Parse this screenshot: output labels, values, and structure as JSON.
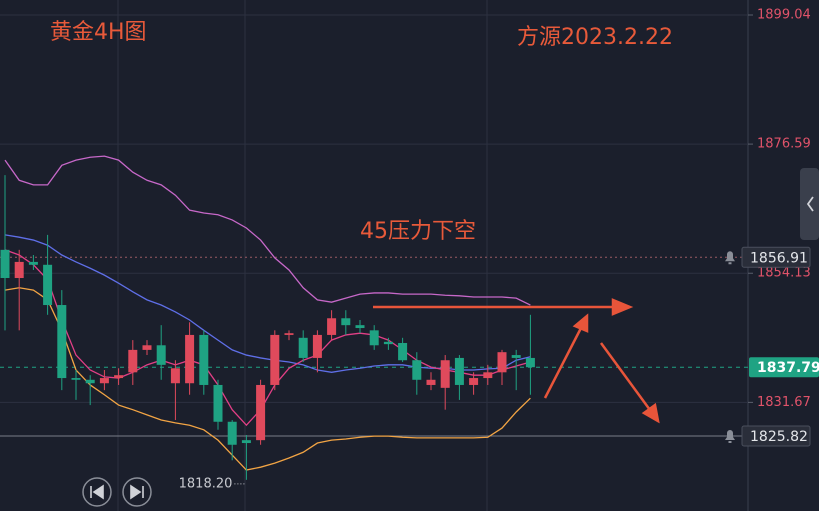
{
  "chart_data": {
    "type": "candlestick",
    "title": "黄金4H图",
    "subtitle": "方源2023.2.22",
    "annotation": "45压力下空",
    "categories": [
      null,
      null,
      null,
      null,
      null,
      null,
      null,
      null,
      null,
      null,
      null,
      null,
      null,
      null,
      null,
      null,
      null,
      null,
      null,
      null,
      null,
      null,
      null,
      null,
      null,
      null,
      null,
      null,
      null,
      null,
      null,
      null,
      null,
      null,
      null,
      null,
      null,
      null
    ],
    "open": [
      1858.2,
      1853.3,
      1856.1,
      1855.6,
      1848.6,
      1835.9,
      1835.6,
      1835.0,
      1835.9,
      1836.9,
      1840.8,
      1841.6,
      1835.0,
      1835.0,
      1843.4,
      1834.7,
      1828.3,
      1825.1,
      1825.1,
      1834.7,
      1843.4,
      1842.9,
      1839.4,
      1843.4,
      1846.3,
      1845.1,
      1844.2,
      1842.2,
      1842.0,
      1839.0,
      1834.7,
      1834.2,
      1839.4,
      1834.7,
      1835.9,
      1836.9,
      1839.9,
      1839.4
    ],
    "high": [
      1871.2,
      1858.2,
      1857.3,
      1860.8,
      1851.2,
      1837.3,
      1836.4,
      1837.3,
      1837.6,
      1842.5,
      1842.5,
      1845.1,
      1839.0,
      1845.6,
      1844.2,
      1835.6,
      1828.6,
      1826.0,
      1835.6,
      1844.2,
      1844.2,
      1844.2,
      1844.2,
      1847.7,
      1847.7,
      1846.0,
      1845.1,
      1842.9,
      1842.9,
      1840.4,
      1836.9,
      1839.9,
      1839.9,
      1836.9,
      1838.2,
      1840.8,
      1840.8,
      1846.9
    ],
    "low": [
      1844.2,
      1844.2,
      1854.7,
      1846.9,
      1833.8,
      1832.1,
      1831.2,
      1833.8,
      1834.7,
      1834.7,
      1839.9,
      1835.6,
      1828.6,
      1833.0,
      1833.0,
      1826.9,
      1821.6,
      1818.2,
      1824.3,
      1833.8,
      1842.5,
      1838.7,
      1836.9,
      1842.5,
      1843.4,
      1843.7,
      1840.8,
      1840.8,
      1838.7,
      1833.0,
      1833.8,
      1830.4,
      1832.1,
      1833.0,
      1834.7,
      1834.7,
      1833.8,
      1833.0
    ],
    "close": [
      1853.3,
      1856.1,
      1855.6,
      1848.6,
      1835.9,
      1835.6,
      1835.0,
      1835.9,
      1836.4,
      1840.8,
      1841.6,
      1838.2,
      1837.6,
      1843.4,
      1834.7,
      1828.3,
      1824.3,
      1824.6,
      1834.7,
      1843.4,
      1843.7,
      1839.4,
      1843.4,
      1846.3,
      1845.1,
      1844.6,
      1841.6,
      1841.8,
      1839.0,
      1835.6,
      1835.6,
      1839.0,
      1834.7,
      1835.9,
      1836.9,
      1840.4,
      1839.4,
      1837.79
    ],
    "up_color": "#e04a5c",
    "down_color": "#1fa383",
    "overlays": [
      {
        "color": "#c768c9",
        "values": [
          1873.8,
          1870.3,
          1869.5,
          1869.5,
          1872.9,
          1873.8,
          1874.3,
          1874.5,
          1873.8,
          1871.7,
          1870.3,
          1869.5,
          1867.7,
          1865.1,
          1864.6,
          1864.3,
          1863.4,
          1862.0,
          1859.9,
          1856.8,
          1854.7,
          1851.6,
          1849.5,
          1849.1,
          1849.8,
          1850.5,
          1850.7,
          1850.7,
          1850.5,
          1850.5,
          1850.5,
          1850.3,
          1850.2,
          1850.0,
          1850.0,
          1850.0,
          1849.8,
          1848.6
        ]
      },
      {
        "color": "#5f6fe8",
        "values": [
          1860.8,
          1860.4,
          1859.9,
          1859.0,
          1857.3,
          1856.1,
          1855.0,
          1853.8,
          1852.4,
          1850.9,
          1849.5,
          1848.6,
          1847.4,
          1846.0,
          1844.2,
          1842.5,
          1840.8,
          1839.9,
          1839.4,
          1839.0,
          1838.7,
          1838.2,
          1837.3,
          1836.9,
          1837.3,
          1837.6,
          1838.0,
          1838.2,
          1838.2,
          1837.8,
          1837.6,
          1837.6,
          1837.3,
          1837.3,
          1837.5,
          1837.6,
          1839.0,
          1839.6
        ]
      },
      {
        "color": "#f2a444",
        "values": [
          1851.2,
          1851.6,
          1851.2,
          1849.5,
          1844.2,
          1837.3,
          1834.7,
          1833.0,
          1831.2,
          1830.4,
          1829.5,
          1828.6,
          1828.1,
          1827.7,
          1826.9,
          1825.1,
          1822.5,
          1819.9,
          1820.4,
          1821.1,
          1822.0,
          1823.0,
          1824.6,
          1825.1,
          1825.3,
          1825.6,
          1825.8,
          1825.8,
          1825.6,
          1825.5,
          1825.5,
          1825.5,
          1825.5,
          1825.5,
          1825.6,
          1827.2,
          1830.0,
          1832.4
        ]
      },
      {
        "color": "#e23f86",
        "values": [
          1858.2,
          1857.3,
          1855.6,
          1853.0,
          1846.0,
          1839.9,
          1837.3,
          1836.1,
          1835.9,
          1836.9,
          1838.2,
          1839.0,
          1838.2,
          1839.0,
          1838.2,
          1834.7,
          1830.4,
          1827.7,
          1830.4,
          1834.7,
          1837.6,
          1839.0,
          1839.9,
          1842.5,
          1843.4,
          1843.7,
          1843.4,
          1842.5,
          1840.8,
          1839.0,
          1837.8,
          1837.3,
          1836.9,
          1836.4,
          1836.4,
          1837.3,
          1838.0,
          1838.7
        ]
      }
    ],
    "ylim": [
      1812.78,
      1901.65
    ],
    "yticks": [
      1899.04,
      1876.59,
      1854.13,
      1831.67
    ],
    "grid": true,
    "price_lines": [
      {
        "value": 1856.91,
        "color": "#9a5a63",
        "style": "dotted",
        "alert": true
      },
      {
        "value": 1837.79,
        "color": "#1fa383",
        "style": "dashed",
        "alert": false
      },
      {
        "value": 1825.82,
        "color": "#7a7e88",
        "style": "solid",
        "alert": true
      }
    ],
    "low_marker": {
      "value": 1818.2,
      "label": "1818.20"
    }
  }
}
